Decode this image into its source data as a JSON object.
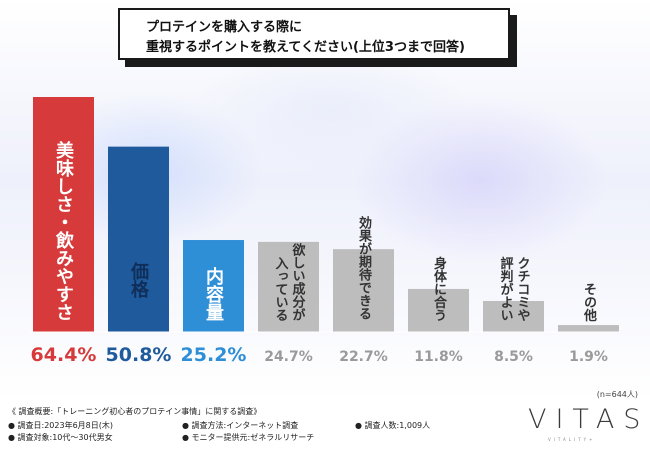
{
  "title": {
    "line1": "プロテインを購入する際に",
    "line2": "重視するポイントを教えてください(上位3つまで回答)"
  },
  "chart_data": {
    "type": "bar",
    "categories": [
      "美味しさ・飲みやすさ",
      "価格",
      "内容量",
      "欲しい成分が入っている",
      "効果が期待できる",
      "身体に合う",
      "クチコミや評判がよい",
      "その他"
    ],
    "category_lines": [
      [
        "美味しさ・飲みやすさ"
      ],
      [
        "価格"
      ],
      [
        "内容量"
      ],
      [
        "入っている",
        "欲しい成分が"
      ],
      [
        "効果が期待できる"
      ],
      [
        "身体に合う"
      ],
      [
        "評判がよい",
        "クチコミや"
      ],
      [
        "その他"
      ]
    ],
    "values": [
      64.4,
      50.8,
      25.2,
      24.7,
      22.7,
      11.8,
      8.5,
      1.9
    ],
    "value_labels": [
      "64.4%",
      "50.8%",
      "25.2%",
      "24.7%",
      "22.7%",
      "11.8%",
      "8.5%",
      "1.9%"
    ],
    "bar_colors": [
      "#d63a3a",
      "#1f5a9c",
      "#2e8ed6",
      "#bdbdbd",
      "#bdbdbd",
      "#bdbdbd",
      "#bdbdbd",
      "#bdbdbd"
    ],
    "value_colors": [
      "#d63a3a",
      "#1f5a9c",
      "#2e8ed6",
      "#9a9a9a",
      "#9a9a9a",
      "#9a9a9a",
      "#9a9a9a",
      "#9a9a9a"
    ],
    "ylim": [
      0,
      64.4
    ],
    "grid": false,
    "legend": "none"
  },
  "sample_note": "(n=644人)",
  "footer": {
    "survey_summary": "《 調査概要:「トレーニング初心者のプロテイン事情」に関する調査》",
    "survey_date": "● 調査日:2023年6月8日(木)",
    "survey_target": "● 調査対象:10代〜30代男女",
    "survey_method": "● 調査方法:インターネット調査",
    "monitor_provider": "● モニター提供元:ゼネラルリサーチ",
    "respondents": "● 調査人数:1,009人"
  },
  "brand": {
    "name": "VITAS",
    "tagline": "VITALITY+"
  }
}
